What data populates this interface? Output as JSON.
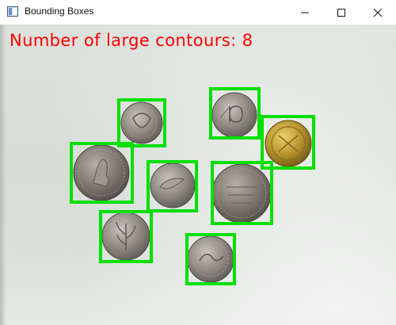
{
  "window": {
    "title": "Bounding Boxes",
    "icon": "opencv-window-icon",
    "controls": [
      "minimize-icon",
      "maximize-icon",
      "close-icon"
    ]
  },
  "image": {
    "overlay_text": "Number of large contours: 8",
    "overlay_color": "#ff0000",
    "box_color": "#00e000",
    "coins": [
      {
        "name": "coin-top-small",
        "type": "silver",
        "motif": "floral"
      },
      {
        "name": "coin-top-right-10",
        "type": "silver",
        "motif": "numeral-10"
      },
      {
        "name": "coin-gold",
        "type": "gold",
        "motif": "pattern"
      },
      {
        "name": "coin-left-large",
        "type": "silver",
        "motif": "figure"
      },
      {
        "name": "coin-center",
        "type": "silver",
        "motif": "animal"
      },
      {
        "name": "coin-right-large",
        "type": "silver",
        "motif": "lines"
      },
      {
        "name": "coin-bottom-left",
        "type": "silver",
        "motif": "plant"
      },
      {
        "name": "coin-bottom-center",
        "type": "silver",
        "motif": "script"
      }
    ]
  }
}
